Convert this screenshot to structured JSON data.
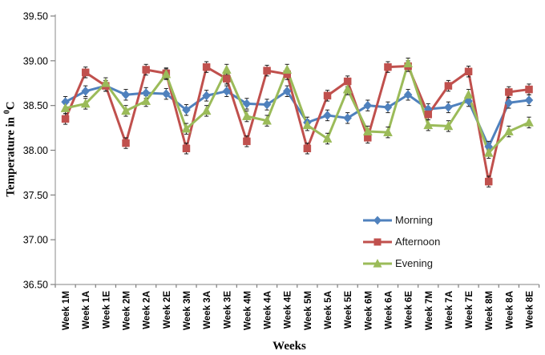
{
  "chart_data": {
    "type": "line",
    "title": "",
    "xlabel": "Weeks",
    "ylabel": "Temperature in ⁰C",
    "ylabel_parts": {
      "pre": "Temperature in ",
      "sup": "0",
      "post": "C"
    },
    "categories": [
      "Week 1M",
      "Week 1A",
      "Week 1E",
      "Week 2M",
      "Week 2A",
      "Week 2E",
      "Week 3M",
      "Week 3A",
      "Week 3E",
      "Week 4M",
      "Week 4A",
      "Week 4E",
      "Week 5M",
      "Week 5A",
      "Week 5E",
      "Week 6M",
      "Week 6A",
      "Week 6E",
      "Week 7M",
      "Week 7A",
      "Week 7E",
      "Week 8M",
      "Week 8A",
      "Week 8E"
    ],
    "series": [
      {
        "name": "Morning",
        "color": "#4F81BD",
        "marker": "diamond",
        "values": [
          38.54,
          38.66,
          38.72,
          38.62,
          38.64,
          38.63,
          38.45,
          38.61,
          38.66,
          38.52,
          38.51,
          38.66,
          38.31,
          38.39,
          38.36,
          38.5,
          38.48,
          38.62,
          38.46,
          38.48,
          38.55,
          38.04,
          38.53,
          38.56
        ]
      },
      {
        "name": "Afternoon",
        "color": "#C0504D",
        "marker": "square",
        "values": [
          38.35,
          38.87,
          38.72,
          38.08,
          38.9,
          38.86,
          38.02,
          38.93,
          38.8,
          38.1,
          38.89,
          38.85,
          38.02,
          38.61,
          38.77,
          38.14,
          38.93,
          38.94,
          38.4,
          38.72,
          38.88,
          37.65,
          38.65,
          38.68
        ]
      },
      {
        "name": "Evening",
        "color": "#9BBB59",
        "marker": "triangle",
        "values": [
          38.47,
          38.52,
          38.75,
          38.44,
          38.55,
          38.85,
          38.24,
          38.44,
          38.9,
          38.38,
          38.33,
          38.9,
          38.28,
          38.13,
          38.68,
          38.21,
          38.2,
          38.97,
          38.28,
          38.27,
          38.62,
          37.97,
          38.21,
          38.31
        ]
      }
    ],
    "ylim": [
      36.5,
      39.5
    ],
    "ytick_step": 0.5,
    "ytick_labels": [
      "36.50",
      "37.00",
      "37.50",
      "38.00",
      "38.50",
      "39.00",
      "39.50"
    ],
    "error_bar": 0.06,
    "grid": false,
    "legend_position": "inside lower right"
  },
  "colors": {
    "axis": "#9c9c9c",
    "tick": "#7f7f7f",
    "error_bar": "#1f1f1f",
    "text": "#000000"
  }
}
